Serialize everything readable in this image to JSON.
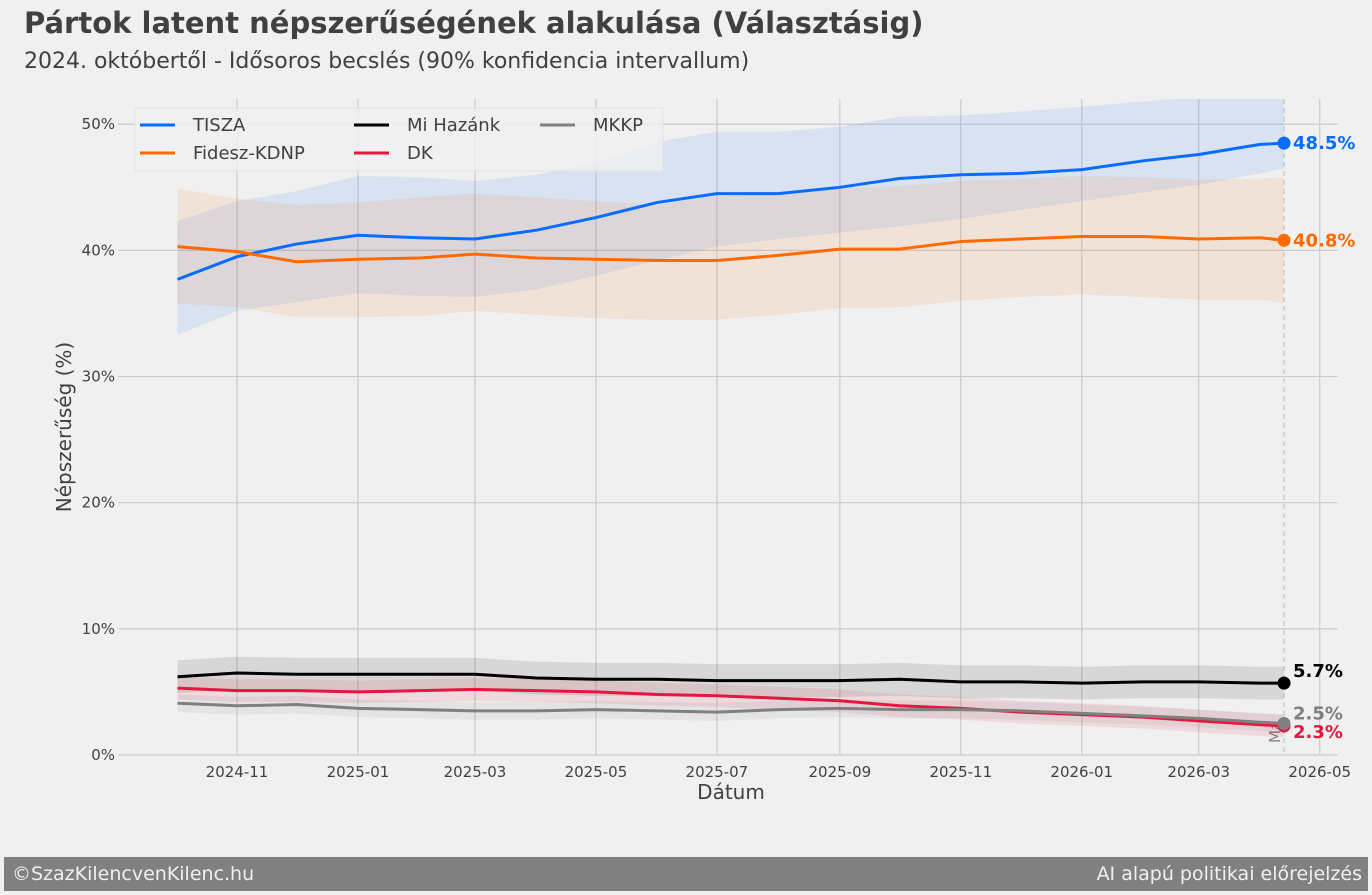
{
  "header": {
    "title": "Pártok latent népszerűségének alakulása (Választásig)",
    "subtitle": "2024. októbertől - Idősoros becslés (90% konfidencia intervallum)"
  },
  "footer": {
    "left": "©SzazKilencvenKilenc.hu",
    "right": "AI alapú politikai előrejelzés"
  },
  "chart_data": {
    "type": "line",
    "xlabel": "Dátum",
    "ylabel": "Népszerűség (%)",
    "ylim": [
      0,
      52
    ],
    "xlim": [
      "2024-09-01",
      "2026-05-15"
    ],
    "yticks": [
      0,
      10,
      20,
      30,
      40,
      50
    ],
    "ytick_labels": [
      "0%",
      "10%",
      "20%",
      "30%",
      "40%",
      "50%"
    ],
    "xticks": [
      "2024-11-01",
      "2025-01-01",
      "2025-03-01",
      "2025-05-01",
      "2025-07-01",
      "2025-09-01",
      "2025-11-01",
      "2026-01-01",
      "2026-03-01",
      "2026-05-01"
    ],
    "xtick_labels": [
      "2024-11",
      "2025-01",
      "2025-03",
      "2025-05",
      "2025-07",
      "2025-09",
      "2025-11",
      "2026-01",
      "2026-03",
      "2026-05"
    ],
    "grid": true,
    "legend": "top-left",
    "today_marker": {
      "date": "2026-04-13",
      "label": "Ma"
    },
    "x": [
      "2024-10-02",
      "2024-11-01",
      "2024-12-01",
      "2025-01-01",
      "2025-02-01",
      "2025-03-01",
      "2025-04-01",
      "2025-05-01",
      "2025-06-01",
      "2025-07-01",
      "2025-08-01",
      "2025-09-01",
      "2025-10-01",
      "2025-11-01",
      "2025-12-01",
      "2026-01-01",
      "2026-02-01",
      "2026-03-01",
      "2026-04-01",
      "2026-04-13"
    ],
    "series": [
      {
        "name": "TISZA",
        "color": "#0a6cff",
        "end_label": "48.5%",
        "values": [
          37.7,
          39.5,
          40.5,
          41.2,
          41.0,
          40.9,
          41.6,
          42.6,
          43.8,
          44.5,
          44.5,
          45.0,
          45.7,
          46.0,
          46.1,
          46.4,
          47.1,
          47.6,
          48.4,
          48.5
        ],
        "upper": [
          42.3,
          43.9,
          44.7,
          45.9,
          45.8,
          45.5,
          46.0,
          47.0,
          48.6,
          49.4,
          49.4,
          49.8,
          50.6,
          50.7,
          51.0,
          51.4,
          51.8,
          52.2,
          52.5,
          52.6
        ],
        "lower": [
          33.3,
          35.2,
          35.9,
          36.6,
          36.4,
          36.3,
          36.9,
          38.0,
          39.2,
          40.3,
          40.9,
          41.4,
          41.9,
          42.5,
          43.2,
          43.9,
          44.6,
          45.2,
          46.1,
          46.5
        ]
      },
      {
        "name": "Fidesz-KDNP",
        "color": "#ff6a00",
        "end_label": "40.8%",
        "values": [
          40.3,
          39.9,
          39.1,
          39.3,
          39.4,
          39.7,
          39.4,
          39.3,
          39.2,
          39.2,
          39.6,
          40.1,
          40.1,
          40.7,
          40.9,
          41.1,
          41.1,
          40.9,
          41.0,
          40.8
        ],
        "upper": [
          44.9,
          44.1,
          43.6,
          43.8,
          44.2,
          44.5,
          44.2,
          43.9,
          43.6,
          44.3,
          44.5,
          44.9,
          45.1,
          45.5,
          45.7,
          45.9,
          45.8,
          45.6,
          45.7,
          45.8
        ],
        "lower": [
          35.8,
          35.5,
          34.7,
          34.7,
          34.8,
          35.2,
          34.9,
          34.6,
          34.5,
          34.5,
          34.9,
          35.4,
          35.5,
          36.0,
          36.3,
          36.5,
          36.3,
          36.1,
          36.1,
          35.8
        ]
      },
      {
        "name": "Mi Hazánk",
        "color": "#000000",
        "end_label": "5.7%",
        "values": [
          6.2,
          6.5,
          6.4,
          6.4,
          6.4,
          6.4,
          6.1,
          6.0,
          6.0,
          5.9,
          5.9,
          5.9,
          6.0,
          5.8,
          5.8,
          5.7,
          5.8,
          5.8,
          5.7,
          5.7
        ],
        "upper": [
          7.5,
          7.8,
          7.7,
          7.7,
          7.7,
          7.7,
          7.4,
          7.3,
          7.3,
          7.2,
          7.2,
          7.2,
          7.3,
          7.1,
          7.1,
          7.0,
          7.1,
          7.1,
          7.0,
          7.0
        ],
        "lower": [
          4.9,
          5.2,
          5.1,
          5.1,
          5.1,
          5.1,
          4.8,
          4.7,
          4.7,
          4.6,
          4.6,
          4.6,
          4.7,
          4.5,
          4.5,
          4.4,
          4.5,
          4.5,
          4.4,
          4.4
        ]
      },
      {
        "name": "DK",
        "color": "#e5173f",
        "end_label": "2.3%",
        "values": [
          5.3,
          5.1,
          5.1,
          5.0,
          5.1,
          5.2,
          5.1,
          5.0,
          4.8,
          4.7,
          4.5,
          4.3,
          3.9,
          3.7,
          3.4,
          3.2,
          3.0,
          2.7,
          2.4,
          2.3
        ],
        "upper": [
          6.2,
          6.0,
          6.0,
          5.9,
          6.0,
          6.1,
          6.0,
          5.9,
          5.7,
          5.6,
          5.4,
          5.2,
          4.8,
          4.6,
          4.3,
          4.1,
          3.9,
          3.6,
          3.3,
          3.2
        ],
        "lower": [
          4.4,
          4.2,
          4.2,
          4.1,
          4.2,
          4.3,
          4.2,
          4.1,
          3.9,
          3.8,
          3.6,
          3.4,
          3.0,
          2.8,
          2.5,
          2.3,
          2.1,
          1.8,
          1.5,
          1.4
        ]
      },
      {
        "name": "MKKP",
        "color": "#808080",
        "end_label": "2.5%",
        "values": [
          4.1,
          3.9,
          4.0,
          3.7,
          3.6,
          3.5,
          3.5,
          3.6,
          3.5,
          3.4,
          3.6,
          3.7,
          3.6,
          3.6,
          3.5,
          3.3,
          3.1,
          2.9,
          2.6,
          2.5
        ],
        "upper": [
          4.8,
          4.6,
          4.7,
          4.4,
          4.3,
          4.2,
          4.2,
          4.3,
          4.2,
          4.1,
          4.3,
          4.4,
          4.3,
          4.3,
          4.2,
          4.0,
          3.8,
          3.6,
          3.3,
          3.2
        ],
        "lower": [
          3.4,
          3.2,
          3.3,
          3.0,
          2.9,
          2.8,
          2.8,
          2.9,
          2.8,
          2.7,
          2.9,
          3.0,
          2.9,
          2.9,
          2.8,
          2.6,
          2.4,
          2.2,
          1.9,
          1.8
        ]
      }
    ]
  }
}
